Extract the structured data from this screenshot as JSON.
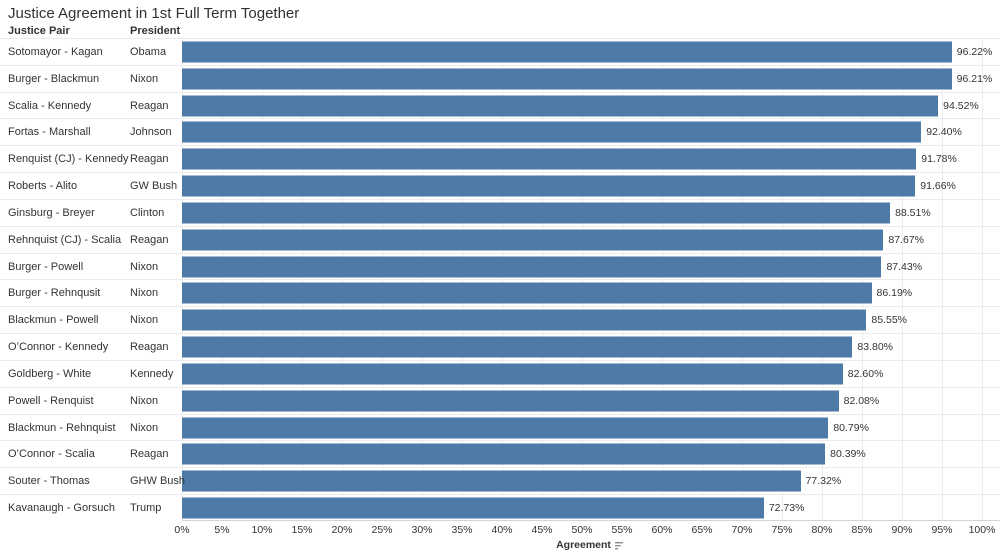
{
  "title": "Justice Agreement in 1st Full Term Together",
  "columns": {
    "justice_pair": "Justice Pair",
    "president": "President"
  },
  "axis": {
    "label": "Agreement",
    "sort_icon": "sort-descending-icon"
  },
  "colors": {
    "bar": "#4e7aa8",
    "gridline": "#ececec",
    "row_divider": "#ebebeb",
    "axis_line": "#d4d4d4",
    "text": "#333333"
  },
  "chart_data": {
    "type": "bar",
    "orientation": "horizontal",
    "title": "Justice Agreement in 1st Full Term Together",
    "xlabel": "Agreement",
    "ylabel": "",
    "xlim": [
      0,
      100
    ],
    "grid": "vertical",
    "legend": "none",
    "x_tick_labels": [
      "0%",
      "5%",
      "10%",
      "15%",
      "20%",
      "25%",
      "30%",
      "35%",
      "40%",
      "45%",
      "50%",
      "55%",
      "60%",
      "65%",
      "70%",
      "75%",
      "80%",
      "85%",
      "90%",
      "95%",
      "100%"
    ],
    "rows": [
      {
        "justice_pair": "Sotomayor - Kagan",
        "president": "Obama",
        "value": 96.22,
        "label": "96.22%"
      },
      {
        "justice_pair": "Burger - Blackmun",
        "president": "Nixon",
        "value": 96.21,
        "label": "96.21%"
      },
      {
        "justice_pair": "Scalia - Kennedy",
        "president": "Reagan",
        "value": 94.52,
        "label": "94.52%"
      },
      {
        "justice_pair": "Fortas - Marshall",
        "president": "Johnson",
        "value": 92.4,
        "label": "92.40%"
      },
      {
        "justice_pair": "Renquist (CJ) - Kennedy",
        "president": "Reagan",
        "value": 91.78,
        "label": "91.78%"
      },
      {
        "justice_pair": "Roberts - Alito",
        "president": "GW Bush",
        "value": 91.66,
        "label": "91.66%"
      },
      {
        "justice_pair": "Ginsburg - Breyer",
        "president": "Clinton",
        "value": 88.51,
        "label": "88.51%"
      },
      {
        "justice_pair": "Rehnquist (CJ) - Scalia",
        "president": "Reagan",
        "value": 87.67,
        "label": "87.67%"
      },
      {
        "justice_pair": "Burger - Powell",
        "president": "Nixon",
        "value": 87.43,
        "label": "87.43%"
      },
      {
        "justice_pair": "Burger - Rehnqusit",
        "president": "Nixon",
        "value": 86.19,
        "label": "86.19%"
      },
      {
        "justice_pair": "Blackmun - Powell",
        "president": "Nixon",
        "value": 85.55,
        "label": "85.55%"
      },
      {
        "justice_pair": "O’Connor - Kennedy",
        "president": "Reagan",
        "value": 83.8,
        "label": "83.80%"
      },
      {
        "justice_pair": "Goldberg - White",
        "president": "Kennedy",
        "value": 82.6,
        "label": "82.60%"
      },
      {
        "justice_pair": "Powell - Renquist",
        "president": "Nixon",
        "value": 82.08,
        "label": "82.08%"
      },
      {
        "justice_pair": "Blackmun - Rehnquist",
        "president": "Nixon",
        "value": 80.79,
        "label": "80.79%"
      },
      {
        "justice_pair": "O’Connor - Scalia",
        "president": "Reagan",
        "value": 80.39,
        "label": "80.39%"
      },
      {
        "justice_pair": "Souter - Thomas",
        "president": "GHW Bush",
        "value": 77.32,
        "label": "77.32%"
      },
      {
        "justice_pair": "Kavanaugh - Gorsuch",
        "president": "Trump",
        "value": 72.73,
        "label": "72.73%"
      }
    ]
  }
}
